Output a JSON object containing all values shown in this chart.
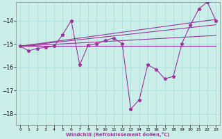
{
  "xlabel": "Windchill (Refroidissement éolien,°C)",
  "background_color": "#cceee8",
  "grid_color": "#aadddd",
  "line_color": "#993399",
  "hours": [
    0,
    1,
    2,
    3,
    4,
    5,
    6,
    7,
    8,
    9,
    10,
    11,
    12,
    13,
    14,
    15,
    16,
    17,
    18,
    19,
    20,
    21,
    22,
    23
  ],
  "windchill": [
    -15.1,
    -15.3,
    -15.2,
    -15.15,
    -15.1,
    -14.6,
    -14.0,
    -15.9,
    -15.05,
    -15.0,
    -14.85,
    -14.75,
    -15.0,
    -17.8,
    -17.4,
    -15.9,
    -16.1,
    -16.5,
    -16.4,
    -15.0,
    -14.2,
    -13.5,
    -13.2,
    -14.0
  ],
  "line1": [
    -15.1,
    -15.1,
    -15.1,
    -15.1,
    -15.1,
    -15.1,
    -15.1,
    -15.1,
    -15.1,
    -15.1,
    -15.1,
    -15.1,
    -15.1,
    -15.1,
    -15.1,
    -15.1,
    -15.1,
    -15.1,
    -15.1,
    -15.1,
    -15.1,
    -15.1,
    -15.1,
    -15.1
  ],
  "line2": [
    -15.1,
    -15.05,
    -15.0,
    -14.95,
    -14.9,
    -14.85,
    -14.8,
    -14.75,
    -14.7,
    -14.65,
    -14.6,
    -14.55,
    -14.5,
    -14.45,
    -14.4,
    -14.35,
    -14.3,
    -14.25,
    -14.2,
    -14.15,
    -14.1,
    -14.05,
    -14.0,
    -13.95
  ],
  "line3": [
    -15.1,
    -15.06,
    -15.02,
    -14.98,
    -14.94,
    -14.9,
    -14.86,
    -14.82,
    -14.78,
    -14.74,
    -14.7,
    -14.66,
    -14.62,
    -14.58,
    -14.54,
    -14.5,
    -14.46,
    -14.42,
    -14.38,
    -14.34,
    -14.3,
    -14.26,
    -14.22,
    -14.18
  ],
  "line4": [
    -15.1,
    -15.08,
    -15.06,
    -15.04,
    -15.02,
    -15.0,
    -14.98,
    -14.96,
    -14.94,
    -14.92,
    -14.9,
    -14.88,
    -14.86,
    -14.84,
    -14.82,
    -14.8,
    -14.78,
    -14.76,
    -14.74,
    -14.72,
    -14.7,
    -14.68,
    -14.66,
    -14.64
  ],
  "ylim": [
    -18.5,
    -13.2
  ],
  "yticks": [
    -18,
    -17,
    -16,
    -15,
    -14
  ],
  "xticks": [
    0,
    1,
    2,
    3,
    4,
    5,
    6,
    7,
    8,
    9,
    10,
    11,
    12,
    13,
    14,
    15,
    16,
    17,
    18,
    19,
    20,
    21,
    22,
    23
  ]
}
